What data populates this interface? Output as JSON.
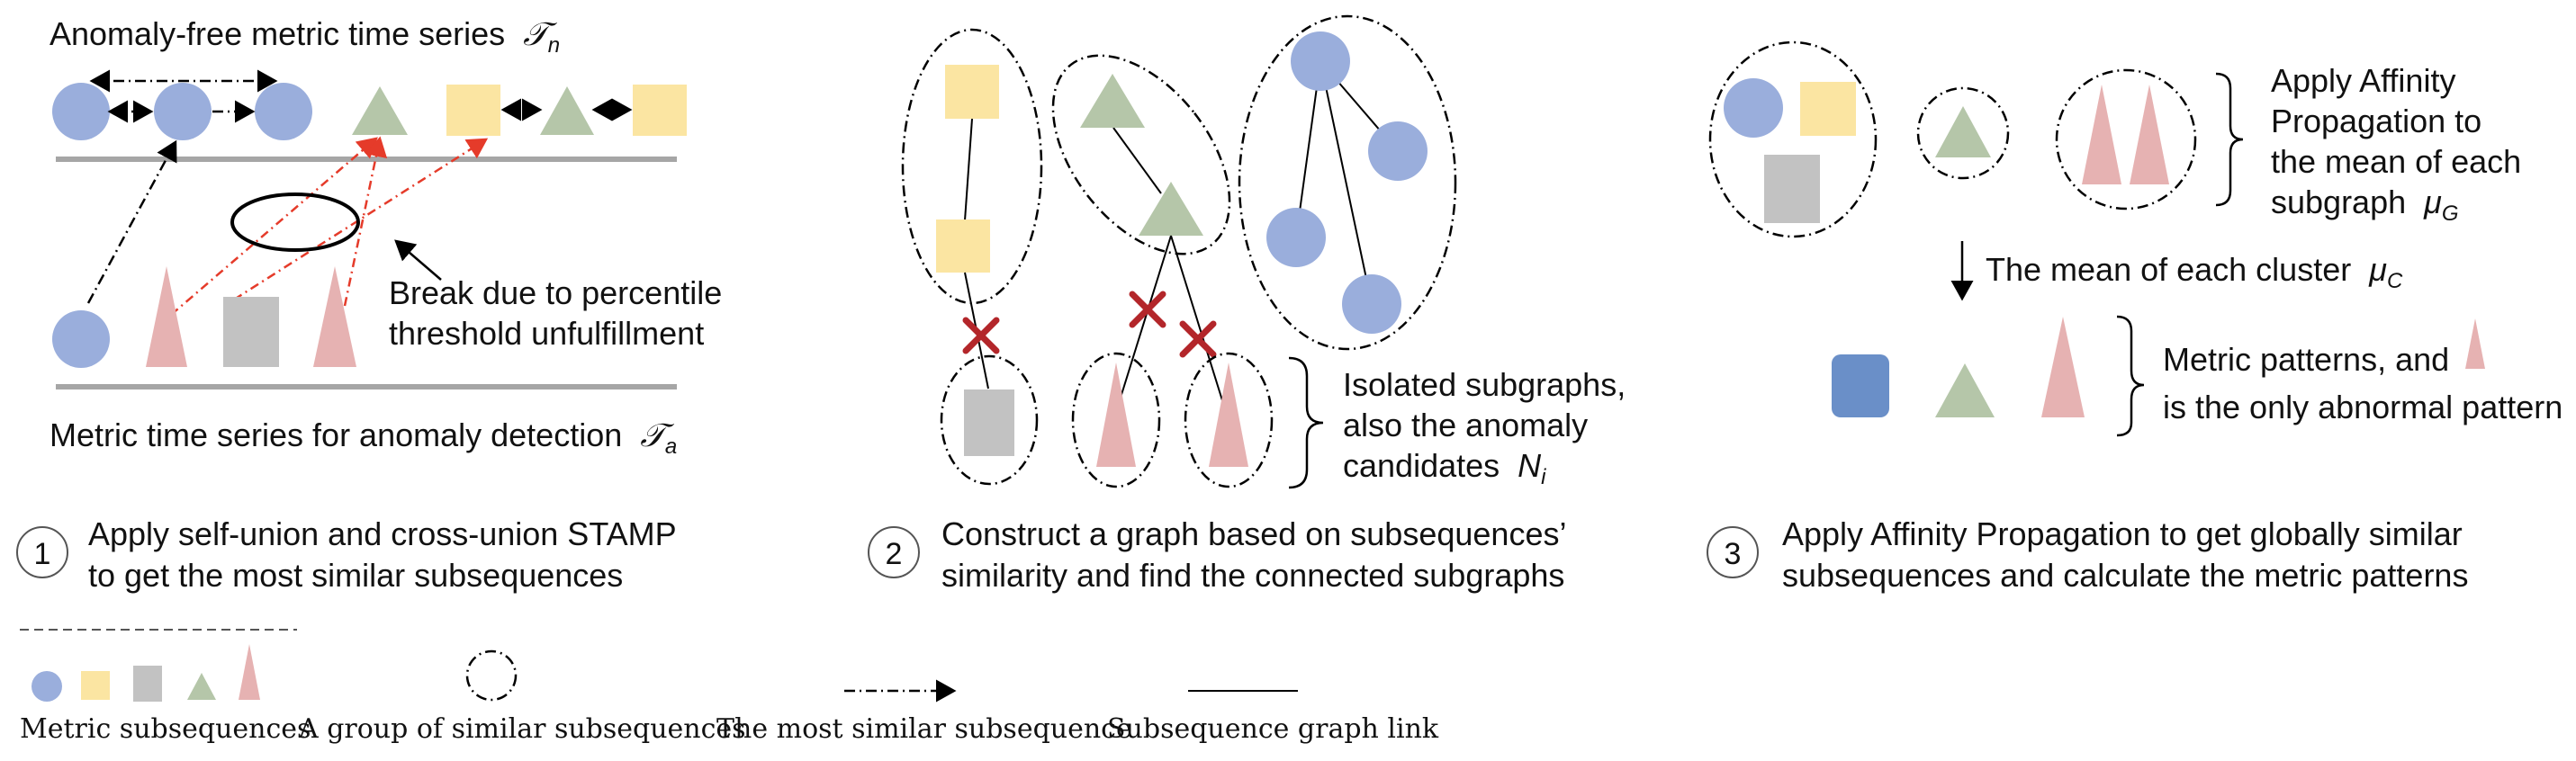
{
  "colors": {
    "circle": "#9aaedc",
    "square_yellow": "#fbe5a2",
    "square_gray": "#c2c2c2",
    "triangle_green": "#b5c6a9",
    "triangle_pink": "#e6b2b2",
    "square_blue": "#6a8fc8",
    "red_arrow": "#e53b2a",
    "cross": "#b3262a",
    "baseline": "#a6a6a6"
  },
  "panel1": {
    "top_label": "Anomaly-free metric time series",
    "top_symbol": "𝒯",
    "top_sub": "n",
    "bottom_label": "Metric time series for anomaly detection",
    "bottom_symbol": "𝒯",
    "bottom_sub": "a",
    "break_line1": "Break due to percentile",
    "break_line2": "threshold unfulfillment",
    "step_number": "1",
    "caption_line1": "Apply self-union and cross-union STAMP",
    "caption_line2": "to get the most similar subsequences"
  },
  "panel2": {
    "isolated_line1": "Isolated subgraphs,",
    "isolated_line2": "also the anomaly",
    "isolated_line3": "candidates",
    "isolated_symbol": "N",
    "isolated_sub": "i",
    "step_number": "2",
    "caption_line1": "Construct a graph based on subsequences’",
    "caption_line2": "similarity and find the connected subgraphs"
  },
  "panel3": {
    "ap_line1": "Apply Affinity",
    "ap_line2": "Propagation to",
    "ap_line3": "the mean of each",
    "ap_line4": "subgraph",
    "ap_symbol": "μ",
    "ap_sub": "G",
    "cluster_label": "The mean of each cluster",
    "cluster_symbol": "μ",
    "cluster_sub": "C",
    "pattern_line1": "Metric patterns, and",
    "pattern_line2": "is the only abnormal pattern",
    "step_number": "3",
    "caption_line1": "Apply Affinity Propagation to get globally similar",
    "caption_line2": "subsequences and calculate the metric patterns"
  },
  "legend": {
    "metric_subsequences": "Metric subsequences",
    "group_similar": "A group of similar subsequences",
    "most_similar": "The most similar subsequence",
    "graph_link": "Subsequence graph link"
  }
}
